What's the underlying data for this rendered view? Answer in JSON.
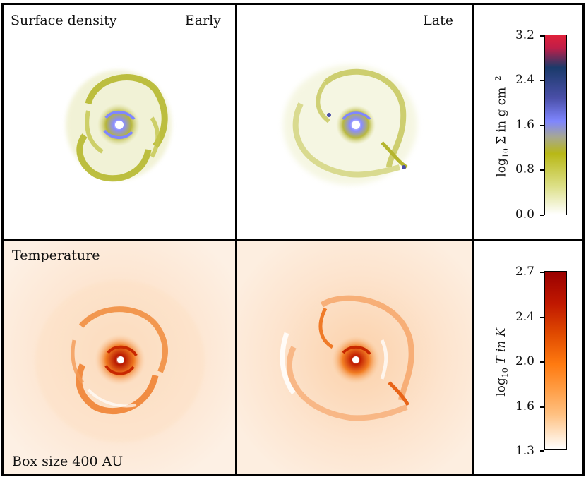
{
  "figure": {
    "top_row": {
      "left_label": "Surface density",
      "left_label_right": "Early",
      "mid_label": "Late"
    },
    "bottom_row": {
      "left_label": "Temperature",
      "bottom_caption": "Box size 400 AU"
    },
    "colorbar_density": {
      "title_prefix": "log",
      "title_sub": "10",
      "title_main": " Σ in g cm",
      "title_sup": "−2",
      "ticks": [
        "3.2",
        "2.4",
        "1.6",
        "0.8",
        "0.0"
      ],
      "colors": [
        "#e0203a",
        "#1a3a6a",
        "#4a4fa8",
        "#7f86ff",
        "#a7a890",
        "#b8b816",
        "#dcdf86",
        "#ffffff"
      ]
    },
    "colorbar_temperature": {
      "title_prefix": "log",
      "title_sub": "10",
      "title_main": " T in K",
      "ticks": [
        "2.7",
        "2.4",
        "2.0",
        "1.6",
        "1.3"
      ],
      "colors": [
        "#9a0000",
        "#d82a00",
        "#ff7a10",
        "#ffc080",
        "#ffffff"
      ]
    }
  }
}
